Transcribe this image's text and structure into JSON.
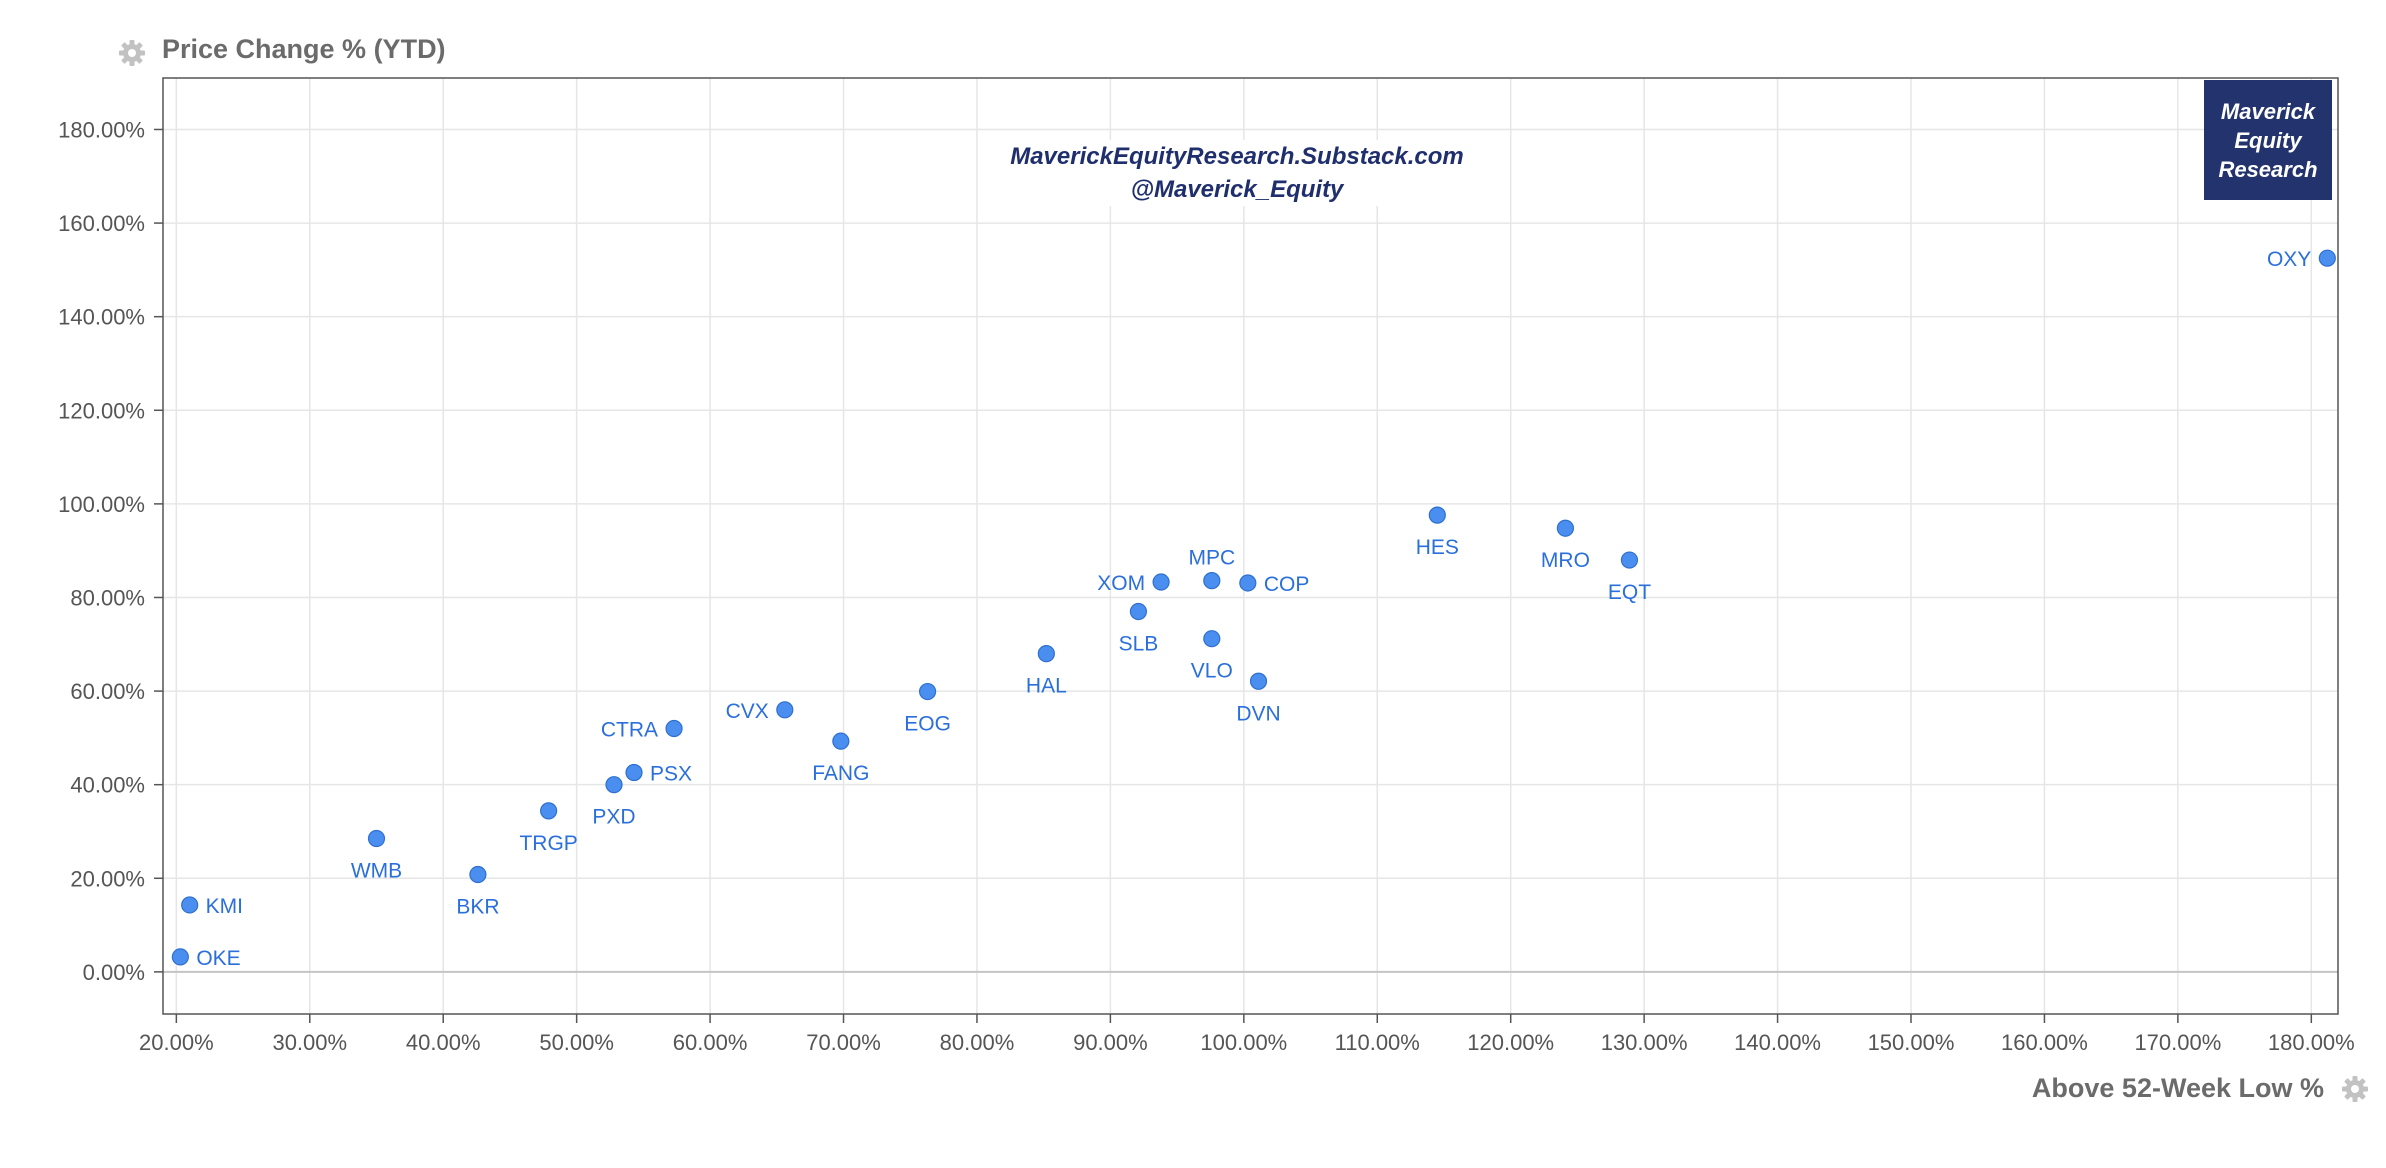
{
  "chart_data": {
    "type": "scatter",
    "title": "",
    "ylabel": "Price Change % (YTD)",
    "xlabel": "Above 52-Week Low %",
    "xlim": [
      19,
      182
    ],
    "ylim": [
      -9,
      191
    ],
    "x_ticks": [
      20,
      30,
      40,
      50,
      60,
      70,
      80,
      90,
      100,
      110,
      120,
      130,
      140,
      150,
      160,
      170,
      180
    ],
    "y_ticks": [
      0,
      20,
      40,
      60,
      80,
      100,
      120,
      140,
      160,
      180
    ],
    "x_tick_labels": [
      "20.00%",
      "30.00%",
      "40.00%",
      "50.00%",
      "60.00%",
      "70.00%",
      "80.00%",
      "90.00%",
      "100.00%",
      "110.00%",
      "120.00%",
      "130.00%",
      "140.00%",
      "150.00%",
      "160.00%",
      "170.00%",
      "180.00%"
    ],
    "y_tick_labels": [
      "0.00%",
      "20.00%",
      "40.00%",
      "60.00%",
      "80.00%",
      "100.00%",
      "120.00%",
      "140.00%",
      "160.00%",
      "180.00%"
    ],
    "grid": true,
    "point_color": "#4a8ff0",
    "label_color": "#2a6fdc",
    "points": [
      {
        "label": "OKE",
        "x": 20.3,
        "y": 3.2,
        "label_pos": "right"
      },
      {
        "label": "KMI",
        "x": 21.0,
        "y": 14.3,
        "label_pos": "right"
      },
      {
        "label": "WMB",
        "x": 35.0,
        "y": 28.5,
        "label_pos": "below"
      },
      {
        "label": "BKR",
        "x": 42.6,
        "y": 20.8,
        "label_pos": "below"
      },
      {
        "label": "TRGP",
        "x": 47.9,
        "y": 34.4,
        "label_pos": "below"
      },
      {
        "label": "PXD",
        "x": 52.8,
        "y": 40.0,
        "label_pos": "below"
      },
      {
        "label": "PSX",
        "x": 54.3,
        "y": 42.6,
        "label_pos": "right"
      },
      {
        "label": "CTRA",
        "x": 57.3,
        "y": 52.0,
        "label_pos": "left"
      },
      {
        "label": "CVX",
        "x": 65.6,
        "y": 56.0,
        "label_pos": "left"
      },
      {
        "label": "FANG",
        "x": 69.8,
        "y": 49.3,
        "label_pos": "below"
      },
      {
        "label": "EOG",
        "x": 76.3,
        "y": 59.9,
        "label_pos": "below"
      },
      {
        "label": "HAL",
        "x": 85.2,
        "y": 68.0,
        "label_pos": "below"
      },
      {
        "label": "SLB",
        "x": 92.1,
        "y": 77.0,
        "label_pos": "below"
      },
      {
        "label": "XOM",
        "x": 93.8,
        "y": 83.3,
        "label_pos": "left"
      },
      {
        "label": "MPC",
        "x": 97.6,
        "y": 83.6,
        "label_pos": "above"
      },
      {
        "label": "VLO",
        "x": 97.6,
        "y": 71.2,
        "label_pos": "below"
      },
      {
        "label": "COP",
        "x": 100.3,
        "y": 83.1,
        "label_pos": "right"
      },
      {
        "label": "DVN",
        "x": 101.1,
        "y": 62.1,
        "label_pos": "below"
      },
      {
        "label": "HES",
        "x": 114.5,
        "y": 97.6,
        "label_pos": "below"
      },
      {
        "label": "MRO",
        "x": 124.1,
        "y": 94.8,
        "label_pos": "below"
      },
      {
        "label": "EQT",
        "x": 128.9,
        "y": 88.0,
        "label_pos": "below"
      },
      {
        "label": "OXY",
        "x": 181.2,
        "y": 152.5,
        "label_pos": "left"
      }
    ]
  },
  "watermark": {
    "line1": "MaverickEquityResearch.Substack.com",
    "line2": "@Maverick_Equity"
  },
  "logo": {
    "line1": "Maverick",
    "line2": "Equity",
    "line3": "Research",
    "bg_color": "#22336e"
  },
  "icons": {
    "y_axis_settings": "gear-icon",
    "x_axis_settings": "gear-icon"
  }
}
